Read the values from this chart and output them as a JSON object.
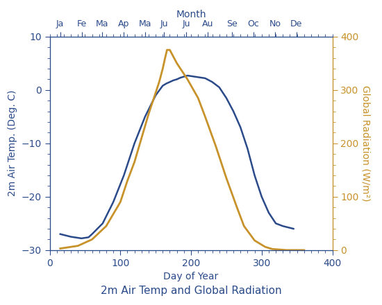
{
  "title": "2m Air Temp and Global Radiation",
  "xlabel": "Day of Year",
  "ylabel_left": "2m Air Temp. (Deg. C)",
  "ylabel_right": "Global Radiation (W/m²)",
  "xlim": [
    0,
    400
  ],
  "ylim_left": [
    -30,
    10
  ],
  "ylim_right": [
    0,
    400
  ],
  "color_temp": "#2a4a8a",
  "color_rad": "#c8922a",
  "top_axis_label": "Month",
  "month_labels": [
    "Ja",
    "Fe",
    "Ma",
    "Ap",
    "Ma",
    "Ju",
    "Ju",
    "Au",
    "Se",
    "Oc",
    "No",
    "De"
  ],
  "month_positions": [
    15,
    46,
    74,
    105,
    135,
    162,
    193,
    224,
    258,
    288,
    319,
    349
  ],
  "xticks_major": [
    0,
    100,
    200,
    300,
    400
  ],
  "yticks_left": [
    -30,
    -20,
    -10,
    0,
    10
  ],
  "yticks_right": [
    0,
    100,
    200,
    300,
    400
  ],
  "temp_days": [
    15,
    30,
    45,
    55,
    60,
    75,
    90,
    105,
    120,
    135,
    150,
    160,
    165,
    170,
    175,
    180,
    185,
    190,
    195,
    200,
    205,
    210,
    215,
    220,
    230,
    240,
    250,
    260,
    270,
    280,
    290,
    300,
    310,
    320,
    330,
    345
  ],
  "temp_values": [
    -27,
    -27.5,
    -27.8,
    -27.6,
    -27,
    -25,
    -21,
    -16,
    -10,
    -5,
    -1,
    0.8,
    1.2,
    1.5,
    1.8,
    2.0,
    2.3,
    2.5,
    2.7,
    2.6,
    2.5,
    2.4,
    2.3,
    2.2,
    1.5,
    0.5,
    -1.5,
    -4,
    -7,
    -11,
    -16,
    -20,
    -23,
    -25,
    -25.5,
    -26
  ],
  "rad_days": [
    15,
    40,
    60,
    80,
    100,
    110,
    120,
    130,
    140,
    150,
    155,
    160,
    163,
    166,
    170,
    180,
    195,
    210,
    220,
    235,
    250,
    265,
    275,
    290,
    305,
    315,
    325,
    335,
    345,
    360
  ],
  "rad_values": [
    3,
    8,
    20,
    45,
    90,
    130,
    165,
    210,
    255,
    295,
    315,
    340,
    358,
    375,
    375,
    350,
    320,
    285,
    250,
    195,
    135,
    80,
    45,
    18,
    6,
    2,
    1,
    0,
    0,
    0
  ]
}
